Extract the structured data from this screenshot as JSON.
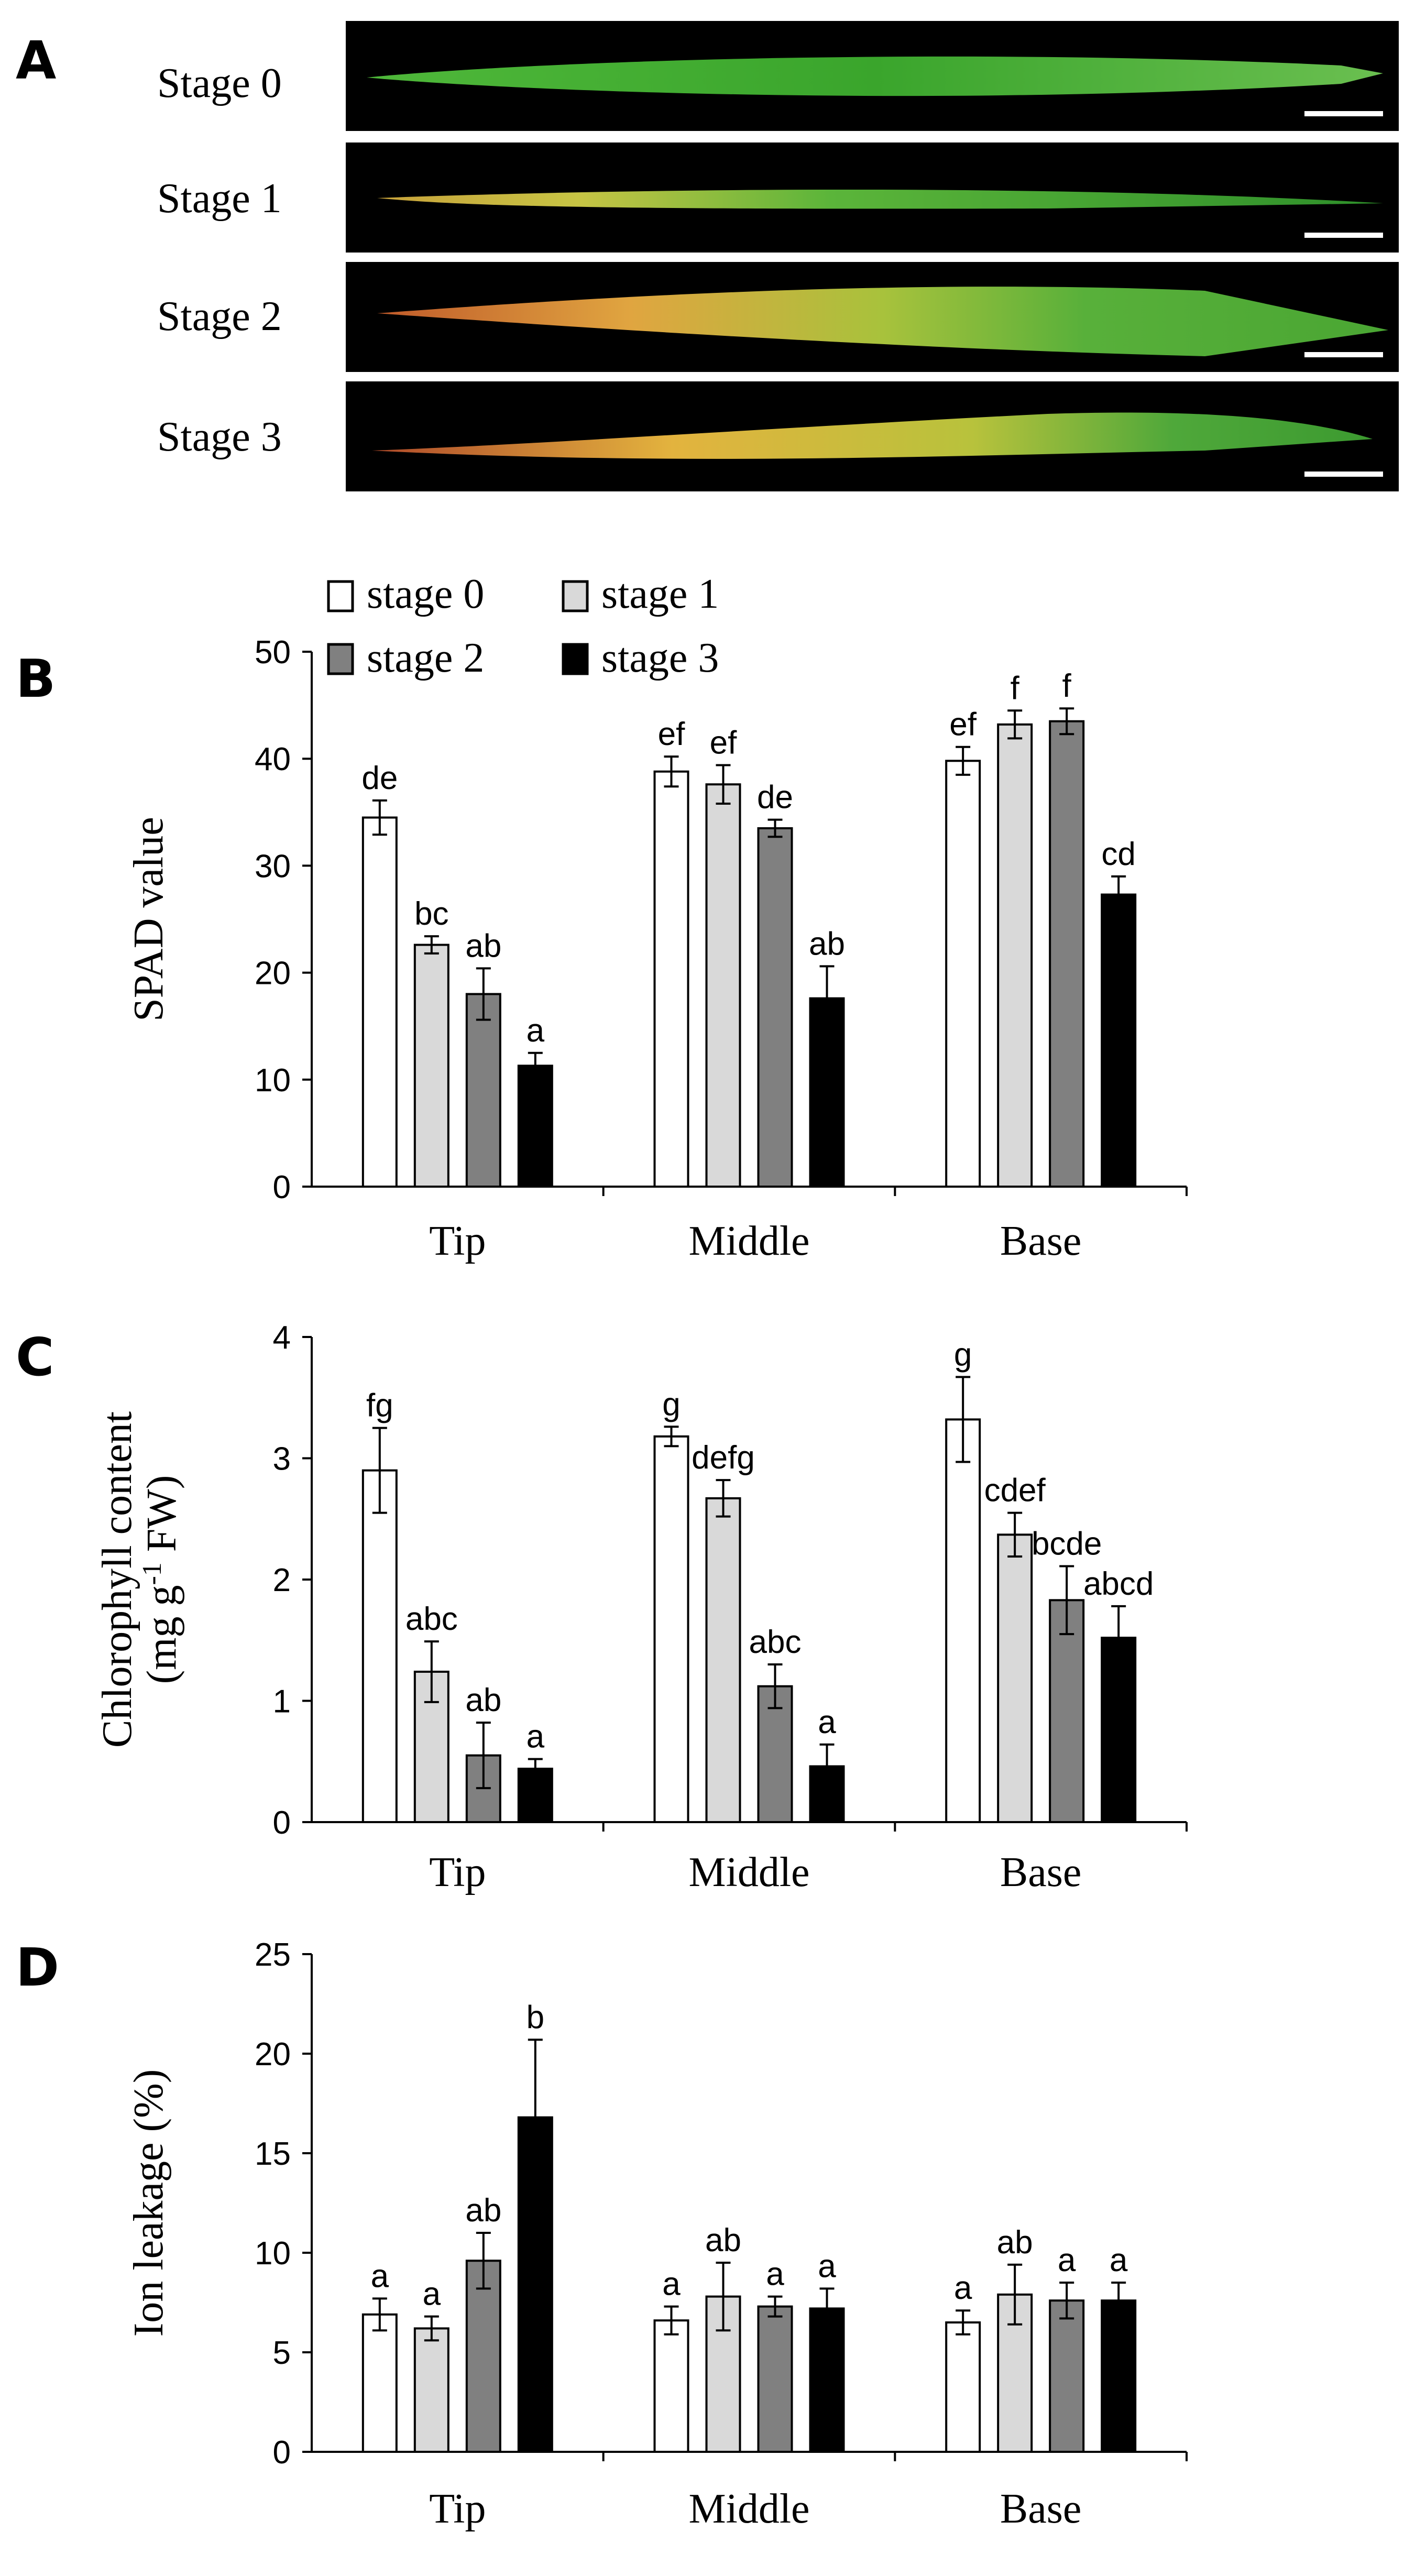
{
  "panel_a": {
    "letter": "A",
    "stage_labels": [
      "Stage 0",
      "Stage 1",
      "Stage 2",
      "Stage 3"
    ]
  },
  "legend": [
    "stage 0",
    "stage 1",
    "stage 2",
    "stage 3"
  ],
  "colors": {
    "stage 0": "#ffffff",
    "stage 1": "#d9d9d9",
    "stage 2": "#808080",
    "stage 3": "#000000",
    "axis": "#000000",
    "photo_background": "#000000",
    "leaf_green": "#3fae2a",
    "leaf_yellow": "#d9b23a"
  },
  "chart_data": [
    {
      "type": "bar",
      "panel": "B",
      "categories": [
        "Tip",
        "Middle",
        "Base"
      ],
      "ylabel": "SPAD value",
      "ylim": [
        0,
        50
      ],
      "yticks": [
        0,
        10,
        20,
        30,
        40,
        50
      ],
      "legend_placement": "top",
      "series": [
        {
          "name": "stage 0",
          "values": [
            34.5,
            38.8,
            39.8
          ],
          "errors": [
            1.6,
            1.4,
            1.3
          ],
          "letters": [
            "de",
            "ef",
            "ef"
          ]
        },
        {
          "name": "stage 1",
          "values": [
            22.6,
            37.6,
            43.2
          ],
          "errors": [
            0.8,
            1.8,
            1.3
          ],
          "letters": [
            "bc",
            "ef",
            "f"
          ]
        },
        {
          "name": "stage 2",
          "values": [
            18.0,
            33.5,
            43.5
          ],
          "errors": [
            2.4,
            0.8,
            1.2
          ],
          "letters": [
            "ab",
            "de",
            "f"
          ]
        },
        {
          "name": "stage 3",
          "values": [
            11.3,
            17.6,
            27.3
          ],
          "errors": [
            1.2,
            3.0,
            1.7
          ],
          "letters": [
            "a",
            "ab",
            "cd"
          ]
        }
      ]
    },
    {
      "type": "bar",
      "panel": "C",
      "categories": [
        "Tip",
        "Middle",
        "Base"
      ],
      "ylabel": "Chlorophyll content",
      "ylabel2_prefix": "(mg g",
      "ylabel2_sup": "-1",
      "ylabel2_suffix": " FW)",
      "ylim": [
        0,
        4
      ],
      "yticks": [
        0,
        1,
        2,
        3,
        4
      ],
      "series": [
        {
          "name": "stage 0",
          "values": [
            2.9,
            3.18,
            3.32
          ],
          "errors": [
            0.35,
            0.08,
            0.35
          ],
          "letters": [
            "fg",
            "g",
            "g"
          ]
        },
        {
          "name": "stage 1",
          "values": [
            1.24,
            2.67,
            2.37
          ],
          "errors": [
            0.25,
            0.15,
            0.18
          ],
          "letters": [
            "abc",
            "defg",
            "cdef"
          ]
        },
        {
          "name": "stage 2",
          "values": [
            0.55,
            1.12,
            1.83
          ],
          "errors": [
            0.27,
            0.18,
            0.28
          ],
          "letters": [
            "ab",
            "abc",
            "bcde"
          ]
        },
        {
          "name": "stage 3",
          "values": [
            0.44,
            0.46,
            1.52
          ],
          "errors": [
            0.08,
            0.18,
            0.26
          ],
          "letters": [
            "a",
            "a",
            "abcd"
          ]
        }
      ]
    },
    {
      "type": "bar",
      "panel": "D",
      "categories": [
        "Tip",
        "Middle",
        "Base"
      ],
      "ylabel": "Ion leakage (%)",
      "ylim": [
        0,
        25
      ],
      "yticks": [
        0,
        5,
        10,
        15,
        20,
        25
      ],
      "series": [
        {
          "name": "stage 0",
          "values": [
            6.9,
            6.6,
            6.5
          ],
          "errors": [
            0.8,
            0.7,
            0.6
          ],
          "letters": [
            "a",
            "a",
            "a"
          ]
        },
        {
          "name": "stage 1",
          "values": [
            6.2,
            7.8,
            7.9
          ],
          "errors": [
            0.6,
            1.7,
            1.5
          ],
          "letters": [
            "a",
            "ab",
            "ab"
          ]
        },
        {
          "name": "stage 2",
          "values": [
            9.6,
            7.3,
            7.6
          ],
          "errors": [
            1.4,
            0.5,
            0.9
          ],
          "letters": [
            "ab",
            "a",
            "a"
          ]
        },
        {
          "name": "stage 3",
          "values": [
            16.8,
            7.2,
            7.6
          ],
          "errors": [
            3.9,
            1.0,
            0.9
          ],
          "letters": [
            "b",
            "a",
            "a"
          ]
        }
      ]
    }
  ]
}
